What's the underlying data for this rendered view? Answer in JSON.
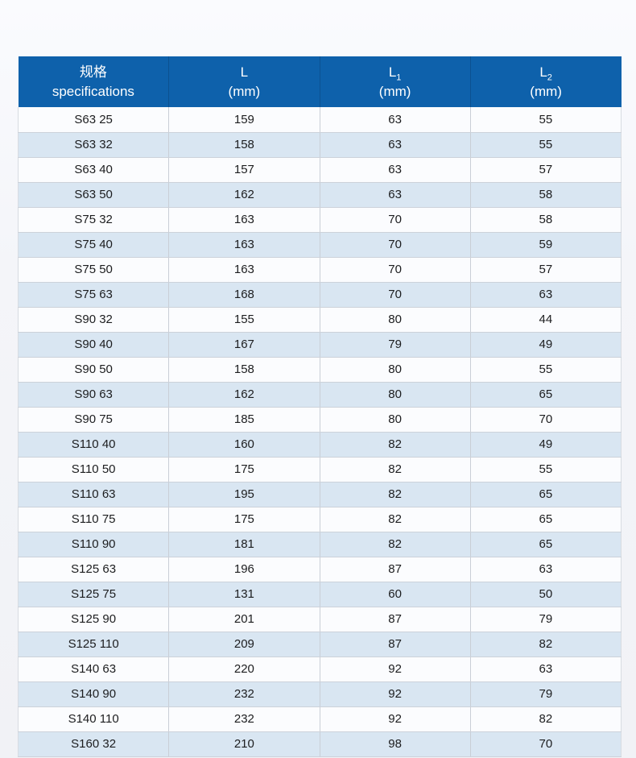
{
  "chart_data": {
    "type": "table",
    "title": "",
    "columns": [
      {
        "id": "spec",
        "title": "规格",
        "subscript": "",
        "unit": "specifications"
      },
      {
        "id": "l",
        "title": "L",
        "subscript": "",
        "unit": "(mm)"
      },
      {
        "id": "l1",
        "title": "L",
        "subscript": "1",
        "unit": "(mm)"
      },
      {
        "id": "l2",
        "title": "L",
        "subscript": "2",
        "unit": "(mm)"
      }
    ],
    "rows": [
      [
        "S63 25",
        "159",
        "63",
        "55"
      ],
      [
        "S63 32",
        "158",
        "63",
        "55"
      ],
      [
        "S63 40",
        "157",
        "63",
        "57"
      ],
      [
        "S63 50",
        "162",
        "63",
        "58"
      ],
      [
        "S75 32",
        "163",
        "70",
        "58"
      ],
      [
        "S75 40",
        "163",
        "70",
        "59"
      ],
      [
        "S75 50",
        "163",
        "70",
        "57"
      ],
      [
        "S75 63",
        "168",
        "70",
        "63"
      ],
      [
        "S90 32",
        "155",
        "80",
        "44"
      ],
      [
        "S90 40",
        "167",
        "79",
        "49"
      ],
      [
        "S90 50",
        "158",
        "80",
        "55"
      ],
      [
        "S90 63",
        "162",
        "80",
        "65"
      ],
      [
        "S90 75",
        "185",
        "80",
        "70"
      ],
      [
        "S110 40",
        "160",
        "82",
        "49"
      ],
      [
        "S110 50",
        "175",
        "82",
        "55"
      ],
      [
        "S110 63",
        "195",
        "82",
        "65"
      ],
      [
        "S110 75",
        "175",
        "82",
        "65"
      ],
      [
        "S110 90",
        "181",
        "82",
        "65"
      ],
      [
        "S125 63",
        "196",
        "87",
        "63"
      ],
      [
        "S125 75",
        "131",
        "60",
        "50"
      ],
      [
        "S125 90",
        "201",
        "87",
        "79"
      ],
      [
        "S125 110",
        "209",
        "87",
        "82"
      ],
      [
        "S140 63",
        "220",
        "92",
        "63"
      ],
      [
        "S140 90",
        "232",
        "92",
        "79"
      ],
      [
        "S140 110",
        "232",
        "92",
        "82"
      ],
      [
        "S160 32",
        "210",
        "98",
        "70"
      ]
    ]
  },
  "colors": {
    "header_bg": "#0e61ab",
    "header_text": "#ffffff",
    "row_bg": "#fbfcfe",
    "row_alt_bg": "#d9e6f2",
    "cell_border": "#c9ced6",
    "page_bg": "#f1f2f6",
    "body_text": "#1c1d1f"
  }
}
